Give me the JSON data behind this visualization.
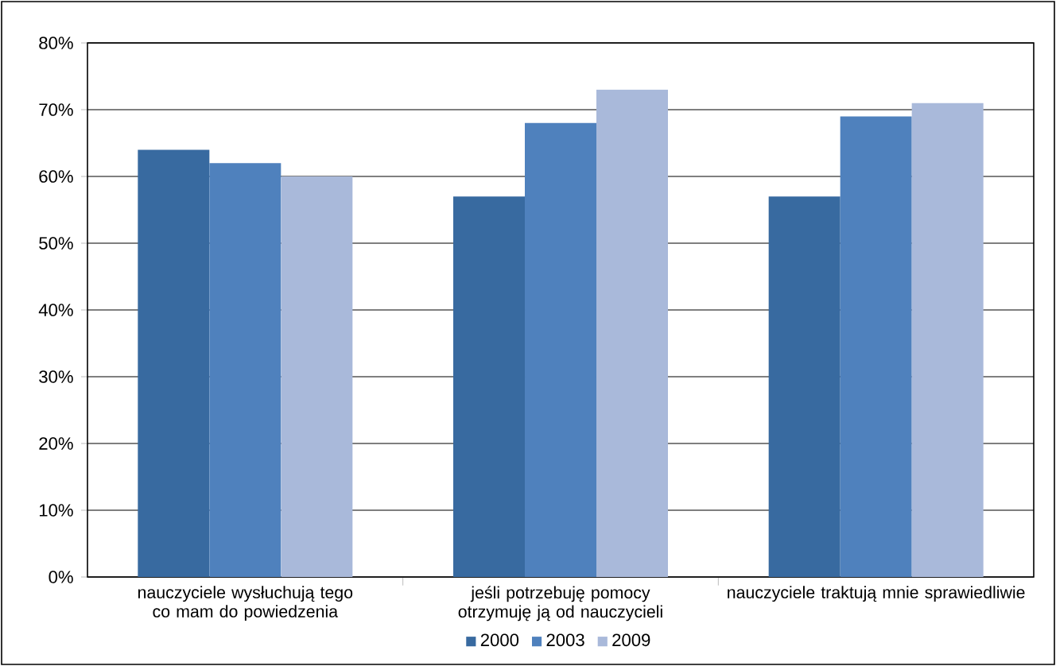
{
  "chart_data": {
    "type": "bar",
    "categories": [
      "nauczyciele wysłuchują tego co mam do powiedzenia",
      "jeśli potrzebuję pomocy otrzymuję ją od nauczycieli",
      "nauczyciele traktują mnie sprawiedliwie"
    ],
    "series": [
      {
        "name": "2000",
        "color": "#386aa0",
        "values": [
          64,
          57,
          57
        ]
      },
      {
        "name": "2003",
        "color": "#4f81bd",
        "values": [
          62,
          68,
          69
        ]
      },
      {
        "name": "2009",
        "color": "#a9b9da",
        "values": [
          60,
          73,
          71
        ]
      }
    ],
    "ylim": [
      0,
      80
    ],
    "yticks": [
      {
        "value": 0,
        "label": "0%"
      },
      {
        "value": 10,
        "label": "10%"
      },
      {
        "value": 20,
        "label": "20%"
      },
      {
        "value": 30,
        "label": "30%"
      },
      {
        "value": 40,
        "label": "40%"
      },
      {
        "value": 50,
        "label": "50%"
      },
      {
        "value": 60,
        "label": "60%"
      },
      {
        "value": 70,
        "label": "70%"
      },
      {
        "value": 80,
        "label": "80%"
      }
    ],
    "grid": "y",
    "legend": "bottom"
  }
}
